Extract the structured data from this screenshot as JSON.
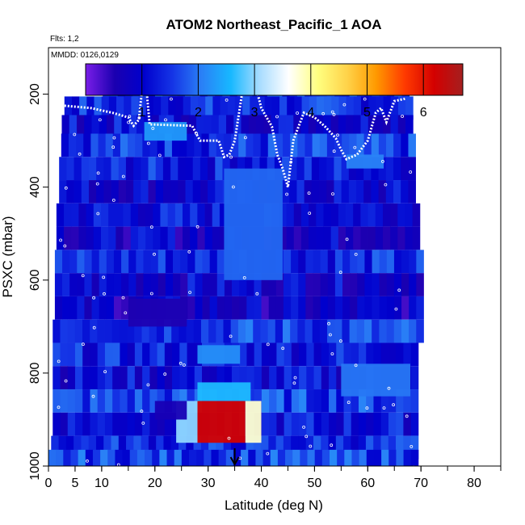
{
  "chart_data": {
    "type": "heatmap",
    "title": "ATOM2 Northeast_Pacific_1 AOA",
    "flights_note": "Flts: 1,2",
    "dates_note": "MMDD: 0126,0129",
    "xlabel": "Latitude (deg N)",
    "ylabel": "PSXC (mbar)",
    "xlim": [
      0,
      85
    ],
    "ylim": [
      1000,
      100
    ],
    "x_ticks": [
      0,
      5,
      10,
      20,
      30,
      40,
      50,
      60,
      70,
      80
    ],
    "y_ticks": [
      200,
      400,
      600,
      800,
      1000
    ],
    "colorbar": {
      "range": [
        0,
        6.7
      ],
      "ticks": [
        1,
        2,
        3,
        4,
        5,
        6
      ],
      "colors": [
        "#7a1ee8",
        "#1b00b0",
        "#0000cd",
        "#1535e6",
        "#2a80f6",
        "#17b8ff",
        "#a8dcff",
        "#ffffff",
        "#ffff80",
        "#ffd34a",
        "#ff9a00",
        "#ff3a00",
        "#d40000",
        "#a51f1f"
      ]
    },
    "layers": [
      {
        "p": 190,
        "x0": 10.2,
        "x1": 67.8,
        "value": 1.6
      },
      {
        "p": 230,
        "x0": 3,
        "x1": 68.5,
        "value": 1.4
      },
      {
        "p": 270,
        "x0": 2.5,
        "x1": 68.5,
        "value": 1.1
      },
      {
        "p": 310,
        "x0": 2.4,
        "x1": 69,
        "value": 1.5
      },
      {
        "p": 360,
        "x0": 2,
        "x1": 69,
        "value": 1.3
      },
      {
        "p": 410,
        "x0": 2,
        "x1": 69,
        "value": 1.0
      },
      {
        "p": 460,
        "x0": 1.5,
        "x1": 69.8,
        "value": 1.2
      },
      {
        "p": 510,
        "x0": 1.5,
        "x1": 69.8,
        "value": 0.9
      },
      {
        "p": 560,
        "x0": 1.2,
        "x1": 70.5,
        "value": 1.4
      },
      {
        "p": 610,
        "x0": 1.2,
        "x1": 70.5,
        "value": 1.0
      },
      {
        "p": 660,
        "x0": 1.2,
        "x1": 70.5,
        "value": 0.8
      },
      {
        "p": 710,
        "x0": 0.8,
        "x1": 70.5,
        "value": 1.6
      },
      {
        "p": 760,
        "x0": 0.8,
        "x1": 69.5,
        "value": 1.3
      },
      {
        "p": 810,
        "x0": 0.8,
        "x1": 69.5,
        "value": 1.1
      },
      {
        "p": 860,
        "x0": 0.8,
        "x1": 69.5,
        "value": 1.6
      },
      {
        "p": 910,
        "x0": 0.8,
        "x1": 69.5,
        "value": 1.2
      },
      {
        "p": 960,
        "x0": 0.5,
        "x1": 69.5,
        "value": 1.4
      },
      {
        "p": 990,
        "x0": 0,
        "x1": 69.5,
        "value": 1.6
      }
    ],
    "hotspots": [
      {
        "x0": 28,
        "x1": 37,
        "p0": 860,
        "p1": 950,
        "value": 6.2
      },
      {
        "x0": 24,
        "x1": 28,
        "p0": 860,
        "p1": 950,
        "value": 3.0
      },
      {
        "x0": 37,
        "x1": 40,
        "p0": 860,
        "p1": 950,
        "value": 3.8
      },
      {
        "x0": 28,
        "x1": 38,
        "p0": 820,
        "p1": 860,
        "value": 2.6
      },
      {
        "x0": 28,
        "x1": 36,
        "p0": 740,
        "p1": 780,
        "value": 2.2
      },
      {
        "x0": 15,
        "x1": 26,
        "p0": 640,
        "p1": 700,
        "value": 0.5
      },
      {
        "x0": 20,
        "x1": 26,
        "p0": 860,
        "p1": 900,
        "value": 0.6
      },
      {
        "x0": 55,
        "x1": 68,
        "p0": 780,
        "p1": 850,
        "value": 2.0
      },
      {
        "x0": 56,
        "x1": 63,
        "p0": 330,
        "p1": 360,
        "value": 2.1
      },
      {
        "x0": 33,
        "x1": 44,
        "p0": 360,
        "p1": 600,
        "value": 1.9
      },
      {
        "x0": 18,
        "x1": 26,
        "p0": 260,
        "p1": 300,
        "value": 2.3
      }
    ],
    "flight_track": [
      [
        3,
        225
      ],
      [
        8,
        230
      ],
      [
        12,
        240
      ],
      [
        15,
        250
      ],
      [
        16,
        268
      ],
      [
        17,
        255
      ],
      [
        17.5,
        200
      ],
      [
        18.5,
        200
      ],
      [
        19,
        265
      ],
      [
        27,
        268
      ],
      [
        28,
        290
      ],
      [
        28.5,
        300
      ],
      [
        32,
        300
      ],
      [
        33,
        335
      ],
      [
        34,
        330
      ],
      [
        35,
        300
      ],
      [
        36.5,
        190
      ],
      [
        39,
        185
      ],
      [
        40,
        230
      ],
      [
        42,
        270
      ],
      [
        43,
        330
      ],
      [
        44,
        360
      ],
      [
        45,
        400
      ],
      [
        46,
        300
      ],
      [
        47,
        270
      ],
      [
        48,
        240
      ],
      [
        50,
        250
      ],
      [
        52,
        270
      ],
      [
        54,
        295
      ],
      [
        55,
        320
      ],
      [
        56,
        340
      ],
      [
        58,
        330
      ],
      [
        60,
        300
      ],
      [
        61.5,
        240
      ],
      [
        62.5,
        230
      ],
      [
        63.5,
        260
      ],
      [
        65,
        215
      ],
      [
        67,
        210
      ]
    ],
    "arrow_latitude": 35
  }
}
